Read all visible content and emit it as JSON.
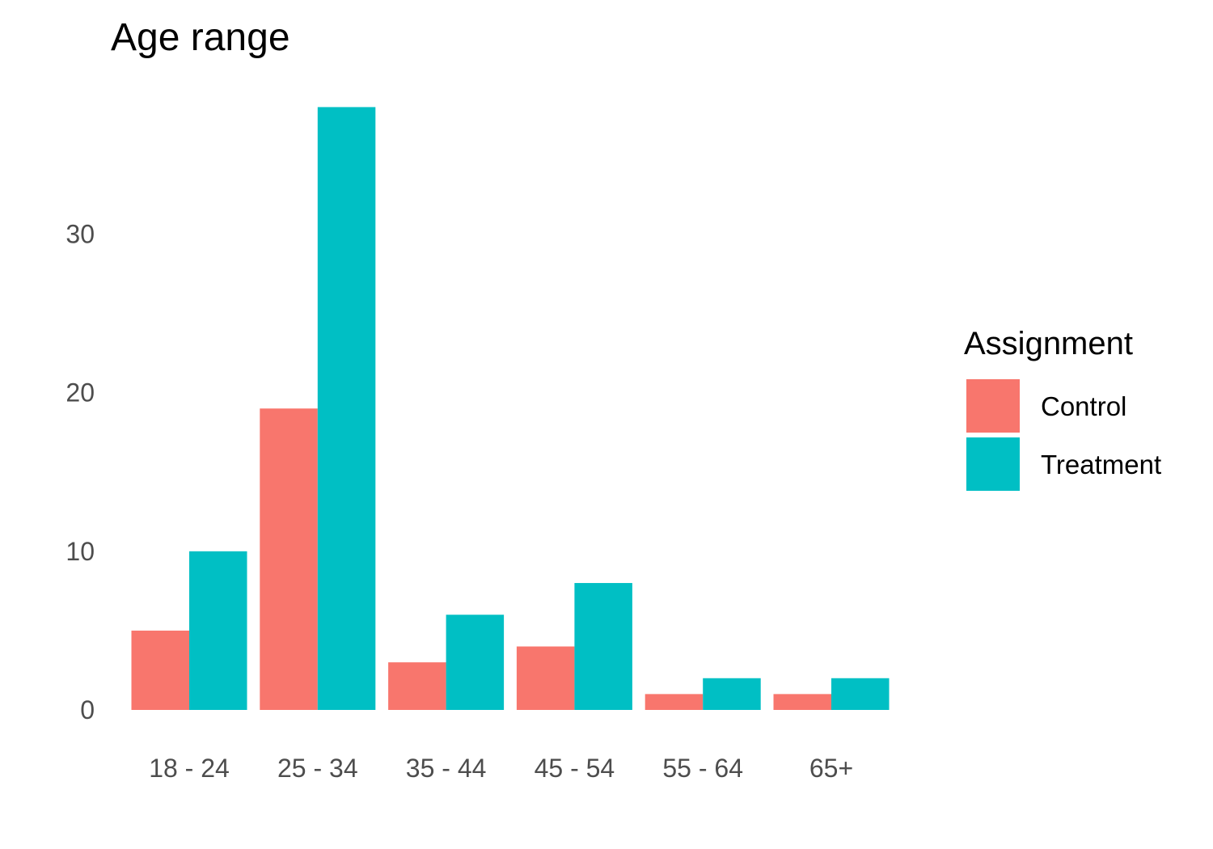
{
  "chart_data": {
    "type": "bar",
    "title": "Age range",
    "xlabel": "",
    "ylabel": "",
    "categories": [
      "18 - 24",
      "25 - 34",
      "35 - 44",
      "45 - 54",
      "55 - 64",
      "65+"
    ],
    "series": [
      {
        "name": "Control",
        "color": "#F8766D",
        "values": [
          5,
          19,
          3,
          4,
          1,
          1
        ]
      },
      {
        "name": "Treatment",
        "color": "#00BFC4",
        "values": [
          10,
          38,
          6,
          8,
          2,
          2
        ]
      }
    ],
    "yticks": [
      0,
      10,
      20,
      30
    ],
    "ylim": [
      0,
      38
    ],
    "grid": false,
    "legend": {
      "title": "Assignment",
      "position": "right"
    }
  }
}
